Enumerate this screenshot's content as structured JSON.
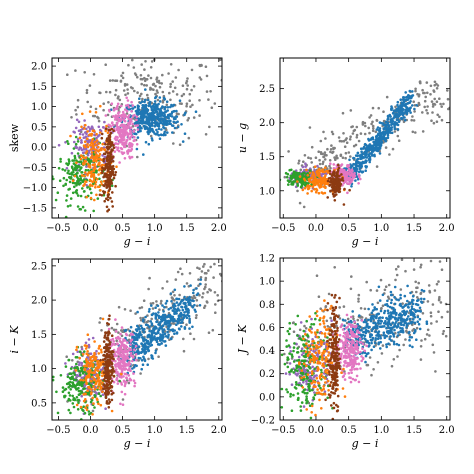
{
  "colors": {
    "gray": "#7f7f7f",
    "blue": "#1f77b4",
    "pink": "#e377c2",
    "purple": "#9467bd",
    "green": "#2ca02c",
    "orange": "#ff7f0e",
    "brown": "#8c3b12"
  },
  "chart_data": [
    {
      "type": "scatter",
      "xlabel": "g − i",
      "ylabel": "skew",
      "xlim": [
        -0.6,
        2.05
      ],
      "ylim": [
        -1.75,
        2.2
      ],
      "xticks": [
        "−0.5",
        "0.0",
        "0.5",
        "1.0",
        "1.5",
        "2.0"
      ],
      "xtick_values": [
        -0.5,
        0,
        0.5,
        1,
        1.5,
        2
      ],
      "yticks": [
        "−1.5",
        "−1.0",
        "−0.5",
        "0.0",
        "0.5",
        "1.0",
        "1.5",
        "2.0"
      ],
      "ytick_values": [
        -1.5,
        -1,
        -0.5,
        0,
        0.5,
        1,
        1.5,
        2
      ],
      "series": [
        {
          "color": "gray",
          "clusters": [
            {
              "cx": 0.9,
              "cy": 1.2,
              "sx": 0.55,
              "sy": 0.55,
              "n": 260
            }
          ]
        },
        {
          "color": "blue",
          "clusters": [
            {
              "cx": 0.95,
              "cy": 0.7,
              "sx": 0.22,
              "sy": 0.22,
              "n": 420
            }
          ]
        },
        {
          "color": "pink",
          "clusters": [
            {
              "cx": 0.5,
              "cy": 0.4,
              "sx": 0.1,
              "sy": 0.35,
              "n": 240
            }
          ]
        },
        {
          "color": "purple",
          "clusters": [
            {
              "cx": 0.0,
              "cy": 0.0,
              "sx": 0.13,
              "sy": 0.3,
              "n": 170
            }
          ]
        },
        {
          "color": "green",
          "clusters": [
            {
              "cx": -0.15,
              "cy": -0.7,
              "sx": 0.18,
              "sy": 0.35,
              "n": 200
            }
          ]
        },
        {
          "color": "orange",
          "clusters": [
            {
              "cx": 0.05,
              "cy": -0.3,
              "sx": 0.12,
              "sy": 0.45,
              "n": 170
            }
          ]
        },
        {
          "color": "brown",
          "clusters": [
            {
              "cx": 0.28,
              "cy": -0.5,
              "sx": 0.04,
              "sy": 0.45,
              "n": 200
            }
          ]
        }
      ]
    },
    {
      "type": "scatter",
      "xlabel": "g − i",
      "ylabel": "u − g",
      "xlim": [
        -0.55,
        2.05
      ],
      "ylim": [
        0.6,
        2.95
      ],
      "xticks": [
        "−0.5",
        "0.0",
        "0.5",
        "1.0",
        "1.5",
        "2.0"
      ],
      "xtick_values": [
        -0.5,
        0,
        0.5,
        1,
        1.5,
        2
      ],
      "yticks": [
        "1.0",
        "1.5",
        "2.0",
        "2.5"
      ],
      "ytick_values": [
        1,
        1.5,
        2,
        2.5
      ],
      "series": [
        {
          "color": "gray",
          "clusters": [
            {
              "line": [
                -0.3,
                1.2,
                2.0,
                2.5
              ],
              "spread": 0.2,
              "n": 280
            }
          ]
        },
        {
          "color": "blue",
          "clusters": [
            {
              "line": [
                0.5,
                1.2,
                1.45,
                2.35
              ],
              "spread": 0.08,
              "n": 480
            }
          ]
        },
        {
          "color": "pink",
          "clusters": [
            {
              "cx": 0.42,
              "cy": 1.22,
              "sx": 0.1,
              "sy": 0.08,
              "n": 150
            }
          ]
        },
        {
          "color": "purple",
          "clusters": [
            {
              "cx": -0.1,
              "cy": 1.2,
              "sx": 0.15,
              "sy": 0.06,
              "n": 130
            }
          ]
        },
        {
          "color": "green",
          "clusters": [
            {
              "cx": -0.25,
              "cy": 1.18,
              "sx": 0.12,
              "sy": 0.06,
              "n": 120
            }
          ]
        },
        {
          "color": "orange",
          "clusters": [
            {
              "cx": 0.05,
              "cy": 1.15,
              "sx": 0.12,
              "sy": 0.08,
              "n": 140
            }
          ]
        },
        {
          "color": "brown",
          "clusters": [
            {
              "cx": 0.3,
              "cy": 1.1,
              "sx": 0.05,
              "sy": 0.1,
              "n": 150
            }
          ]
        }
      ]
    },
    {
      "type": "scatter",
      "xlabel": "g − i",
      "ylabel": "i − K",
      "xlim": [
        -0.6,
        2.05
      ],
      "ylim": [
        0.25,
        2.6
      ],
      "xticks": [
        "−0.5",
        "0.0",
        "0.5",
        "1.0",
        "1.5",
        "2.0"
      ],
      "xtick_values": [
        -0.5,
        0,
        0.5,
        1,
        1.5,
        2
      ],
      "yticks": [
        "0.5",
        "1.0",
        "1.5",
        "2.0",
        "2.5"
      ],
      "ytick_values": [
        0.5,
        1,
        1.5,
        2,
        2.5
      ],
      "series": [
        {
          "color": "gray",
          "clusters": [
            {
              "line": [
                -0.3,
                0.8,
                2.0,
                2.3
              ],
              "spread": 0.25,
              "n": 280
            }
          ]
        },
        {
          "color": "blue",
          "clusters": [
            {
              "line": [
                0.6,
                1.2,
                1.6,
                2.0
              ],
              "spread": 0.15,
              "n": 460
            }
          ]
        },
        {
          "color": "pink",
          "clusters": [
            {
              "cx": 0.5,
              "cy": 1.15,
              "sx": 0.1,
              "sy": 0.2,
              "n": 230
            }
          ]
        },
        {
          "color": "purple",
          "clusters": [
            {
              "cx": 0.0,
              "cy": 0.9,
              "sx": 0.13,
              "sy": 0.2,
              "n": 160
            }
          ]
        },
        {
          "color": "green",
          "clusters": [
            {
              "cx": -0.15,
              "cy": 0.75,
              "sx": 0.17,
              "sy": 0.2,
              "n": 190
            }
          ]
        },
        {
          "color": "orange",
          "clusters": [
            {
              "cx": 0.05,
              "cy": 0.9,
              "sx": 0.12,
              "sy": 0.25,
              "n": 160
            }
          ]
        },
        {
          "color": "brown",
          "clusters": [
            {
              "cx": 0.28,
              "cy": 1.05,
              "sx": 0.04,
              "sy": 0.28,
              "n": 190
            }
          ]
        }
      ]
    },
    {
      "type": "scatter",
      "xlabel": "g − i",
      "ylabel": "J − K",
      "xlim": [
        -0.55,
        2.05
      ],
      "ylim": [
        -0.2,
        1.2
      ],
      "xticks": [
        "−0.5",
        "0.0",
        "0.5",
        "1.0",
        "1.5",
        "2.0"
      ],
      "xtick_values": [
        -0.5,
        0,
        0.5,
        1,
        1.5,
        2
      ],
      "yticks": [
        "−0.2",
        "0.0",
        "0.2",
        "0.4",
        "0.6",
        "0.8",
        "1.0",
        "1.2"
      ],
      "ytick_values": [
        -0.2,
        0,
        0.2,
        0.4,
        0.6,
        0.8,
        1,
        1.2
      ],
      "series": [
        {
          "color": "gray",
          "clusters": [
            {
              "line": [
                -0.3,
                0.4,
                2.0,
                0.85
              ],
              "spread": 0.22,
              "n": 260
            }
          ]
        },
        {
          "color": "blue",
          "clusters": [
            {
              "line": [
                0.5,
                0.5,
                1.6,
                0.75
              ],
              "spread": 0.1,
              "n": 440
            }
          ]
        },
        {
          "color": "pink",
          "clusters": [
            {
              "cx": 0.5,
              "cy": 0.4,
              "sx": 0.1,
              "sy": 0.12,
              "n": 220
            }
          ]
        },
        {
          "color": "purple",
          "clusters": [
            {
              "cx": -0.05,
              "cy": 0.3,
              "sx": 0.15,
              "sy": 0.15,
              "n": 160
            }
          ]
        },
        {
          "color": "green",
          "clusters": [
            {
              "cx": -0.15,
              "cy": 0.25,
              "sx": 0.17,
              "sy": 0.2,
              "n": 200
            }
          ]
        },
        {
          "color": "orange",
          "clusters": [
            {
              "cx": 0.05,
              "cy": 0.3,
              "sx": 0.13,
              "sy": 0.22,
              "n": 170
            }
          ]
        },
        {
          "color": "brown",
          "clusters": [
            {
              "cx": 0.28,
              "cy": 0.35,
              "sx": 0.04,
              "sy": 0.25,
              "n": 200
            }
          ]
        }
      ]
    }
  ]
}
